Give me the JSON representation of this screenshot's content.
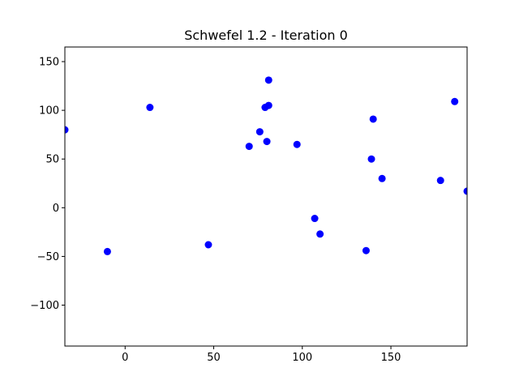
{
  "chart_data": {
    "type": "scatter",
    "title": "Schwefel 1.2 - Iteration 0",
    "xlabel": "",
    "ylabel": "",
    "xlim": [
      -34,
      193
    ],
    "ylim": [
      -142,
      165
    ],
    "x_ticks": [
      0,
      50,
      100,
      150
    ],
    "x_tick_labels": [
      "0",
      "50",
      "100",
      "150"
    ],
    "y_ticks": [
      -100,
      -50,
      0,
      50,
      100,
      150
    ],
    "y_tick_labels": [
      "−100",
      "−50",
      "0",
      "50",
      "100",
      "150"
    ],
    "grid": false,
    "legend": "none",
    "marker_color": "#0000ff",
    "points": [
      {
        "x": -34,
        "y": 80
      },
      {
        "x": -10,
        "y": -45
      },
      {
        "x": 14,
        "y": 103
      },
      {
        "x": 47,
        "y": -38
      },
      {
        "x": 70,
        "y": 63
      },
      {
        "x": 76,
        "y": 78
      },
      {
        "x": 79,
        "y": 103
      },
      {
        "x": 80,
        "y": 68
      },
      {
        "x": 81,
        "y": 131
      },
      {
        "x": 81,
        "y": 105
      },
      {
        "x": 97,
        "y": 65
      },
      {
        "x": 107,
        "y": -11
      },
      {
        "x": 110,
        "y": -27
      },
      {
        "x": 136,
        "y": -44
      },
      {
        "x": 139,
        "y": 50
      },
      {
        "x": 140,
        "y": 91
      },
      {
        "x": 145,
        "y": 30
      },
      {
        "x": 178,
        "y": 28
      },
      {
        "x": 186,
        "y": 109
      },
      {
        "x": 193,
        "y": 17
      }
    ]
  }
}
